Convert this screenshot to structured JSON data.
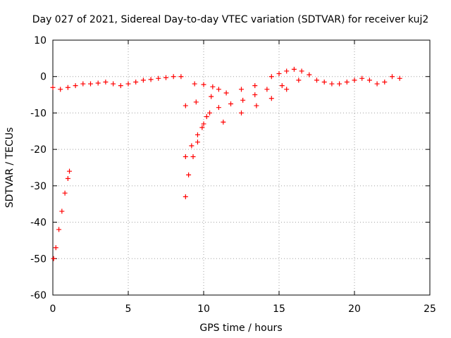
{
  "chart_data": {
    "type": "scatter",
    "title": "Day 027 of 2021, Sidereal Day-to-day VTEC variation (SDTVAR) for receiver kuj2",
    "xlabel": "GPS time / hours",
    "ylabel": "SDTVAR / TECUs",
    "xlim": [
      0,
      25
    ],
    "ylim": [
      -60,
      10
    ],
    "x_ticks": [
      "0",
      "5",
      "10",
      "15",
      "20",
      "25"
    ],
    "y_ticks": [
      "10",
      "0",
      "-10",
      "-20",
      "-30",
      "-40",
      "-50",
      "-60"
    ],
    "grid": true,
    "marker": "+",
    "series_color": "#ff0000",
    "series": [
      {
        "x": [
          0,
          0.5,
          1,
          1.5,
          2,
          2.5,
          3,
          3.5,
          4,
          4.5,
          5,
          5.5,
          6,
          6.5,
          7,
          7.5,
          8,
          8.5
        ],
        "y": [
          -3,
          -3.5,
          -3,
          -2.5,
          -2,
          -2,
          -1.8,
          -1.5,
          -2,
          -2.5,
          -2,
          -1.5,
          -1,
          -0.8,
          -0.5,
          -0.3,
          0,
          0
        ]
      },
      {
        "x": [
          0.05,
          0.2,
          0.4,
          0.6,
          0.8,
          1.0,
          1.1
        ],
        "y": [
          -50,
          -47,
          -42,
          -37,
          -32,
          -28,
          -26
        ]
      },
      {
        "x": [
          8.8,
          9.0,
          9.3,
          9.6,
          9.9,
          10.2
        ],
        "y": [
          -33,
          -27,
          -22,
          -18,
          -14,
          -11
        ]
      },
      {
        "x": [
          8.8,
          9.2,
          9.6,
          10.0,
          10.4
        ],
        "y": [
          -22,
          -19,
          -16,
          -13,
          -10
        ]
      },
      {
        "x": [
          8.8,
          9.5,
          10.5,
          11.5,
          12.5,
          13.4
        ],
        "y": [
          -8,
          -7,
          -5.5,
          -4.5,
          -3.5,
          -2.5
        ]
      },
      {
        "x": [
          9.4,
          10.0,
          10.6,
          11.0
        ],
        "y": [
          -2,
          -2.2,
          -2.8,
          -3.5
        ]
      },
      {
        "x": [
          11.0,
          11.8,
          12.6,
          13.4,
          14.2,
          15.2
        ],
        "y": [
          -8.5,
          -7.5,
          -6.5,
          -5,
          -3.5,
          -2.5
        ]
      },
      {
        "x": [
          11.3,
          12.5,
          13.5,
          14.5,
          15.5,
          16.3
        ],
        "y": [
          -12.5,
          -10,
          -8,
          -6,
          -3.5,
          -1
        ]
      },
      {
        "x": [
          14.5,
          15,
          15.5,
          16,
          16.5,
          17,
          17.5,
          18,
          18.5,
          19,
          19.5,
          20,
          20.5,
          21,
          21.5,
          22,
          22.5,
          23
        ],
        "y": [
          0,
          0.8,
          1.5,
          2,
          1.5,
          0.5,
          -1,
          -1.5,
          -2,
          -2,
          -1.5,
          -1,
          -0.5,
          -1,
          -2,
          -1.5,
          0,
          -0.5
        ]
      }
    ]
  }
}
